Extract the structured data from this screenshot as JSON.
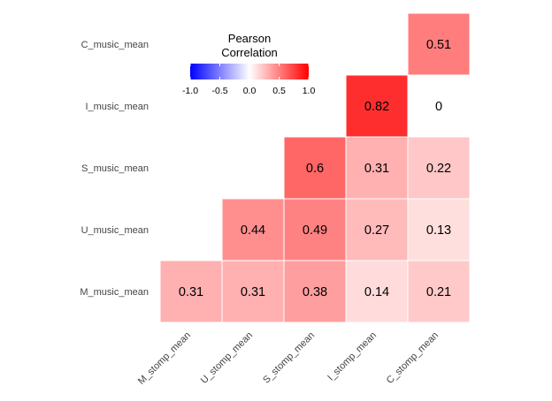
{
  "chart_data": {
    "type": "heatmap",
    "x_categories": [
      "M_stomp_mean",
      "U_stomp_mean",
      "S_stomp_mean",
      "I_stomp_mean",
      "C_stomp_mean"
    ],
    "y_categories": [
      "M_music_mean",
      "U_music_mean",
      "S_music_mean",
      "I_music_mean",
      "C_music_mean"
    ],
    "cells": [
      {
        "x": "M_stomp_mean",
        "y": "M_music_mean",
        "value": 0.31,
        "label": "0.31"
      },
      {
        "x": "U_stomp_mean",
        "y": "M_music_mean",
        "value": 0.31,
        "label": "0.31"
      },
      {
        "x": "S_stomp_mean",
        "y": "M_music_mean",
        "value": 0.38,
        "label": "0.38"
      },
      {
        "x": "I_stomp_mean",
        "y": "M_music_mean",
        "value": 0.14,
        "label": "0.14"
      },
      {
        "x": "C_stomp_mean",
        "y": "M_music_mean",
        "value": 0.21,
        "label": "0.21"
      },
      {
        "x": "U_stomp_mean",
        "y": "U_music_mean",
        "value": 0.44,
        "label": "0.44"
      },
      {
        "x": "S_stomp_mean",
        "y": "U_music_mean",
        "value": 0.49,
        "label": "0.49"
      },
      {
        "x": "I_stomp_mean",
        "y": "U_music_mean",
        "value": 0.27,
        "label": "0.27"
      },
      {
        "x": "C_stomp_mean",
        "y": "U_music_mean",
        "value": 0.13,
        "label": "0.13"
      },
      {
        "x": "S_stomp_mean",
        "y": "S_music_mean",
        "value": 0.6,
        "label": "0.6"
      },
      {
        "x": "I_stomp_mean",
        "y": "S_music_mean",
        "value": 0.31,
        "label": "0.31"
      },
      {
        "x": "C_stomp_mean",
        "y": "S_music_mean",
        "value": 0.22,
        "label": "0.22"
      },
      {
        "x": "I_stomp_mean",
        "y": "I_music_mean",
        "value": 0.82,
        "label": "0.82"
      },
      {
        "x": "C_stomp_mean",
        "y": "I_music_mean",
        "value": 0,
        "label": "0"
      },
      {
        "x": "C_stomp_mean",
        "y": "C_music_mean",
        "value": 0.51,
        "label": "0.51"
      }
    ],
    "legend": {
      "title_lines": [
        "Pearson",
        "Correlation"
      ],
      "ticks": [
        -1.0,
        -0.5,
        0.0,
        0.5,
        1.0
      ],
      "tick_labels": [
        "-1.0",
        "-0.5",
        "0.0",
        "0.5",
        "1.0"
      ],
      "limits": [
        -1,
        1
      ],
      "placement": "top-left",
      "colors": {
        "low": "#0000ff",
        "mid": "#ffffff",
        "high": "#ff0000"
      }
    },
    "grid": false
  }
}
